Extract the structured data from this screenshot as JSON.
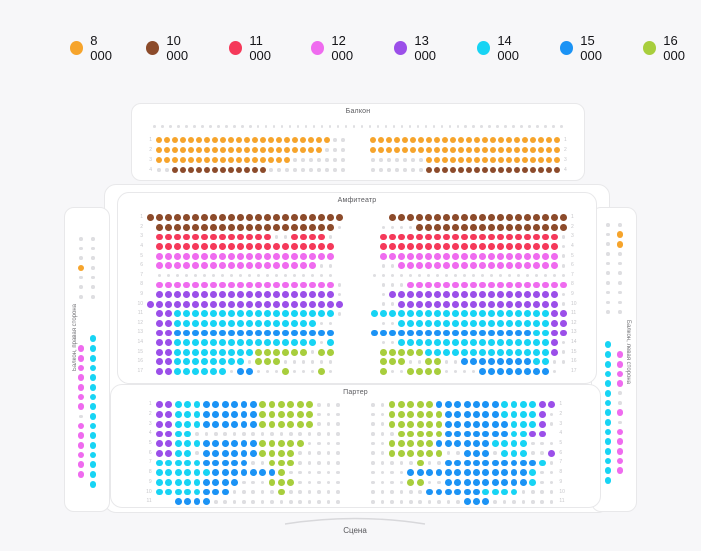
{
  "legend": {
    "items": [
      {
        "label": "8 000",
        "color": "#F6A42C"
      },
      {
        "label": "10 000",
        "color": "#8C4B2B"
      },
      {
        "label": "11 000",
        "color": "#F5395A"
      },
      {
        "label": "12 000",
        "color": "#EF6BEF"
      },
      {
        "label": "13 000",
        "color": "#9B4FE9"
      },
      {
        "label": "14 000",
        "color": "#17D4F4"
      },
      {
        "label": "15 000",
        "color": "#1B93F5"
      },
      {
        "label": "16 000",
        "color": "#A8CE3D"
      }
    ]
  },
  "palette": {
    "o": "#F6A42C",
    "b": "#8C4B2B",
    "r": "#F5395A",
    "m": "#EF6BEF",
    "p": "#9B4FE9",
    "c": "#17D4F4",
    "l": "#1B93F5",
    "g": "#A8CE3D",
    "na": "#DEDEE1"
  },
  "sections": {
    "balcony": {
      "title": "Балкон",
      "mini_count": 52,
      "rows": [
        {
          "l": "oooooooooooooooooooooo..",
          "r": "oooooooooooooooooooooooo"
        },
        {
          "l": "ooooooooooooooooooooo...",
          "r": "oooooooooooooooooooooooo"
        },
        {
          "l": "ooooooooooooooooo.......",
          "r": ".......ooooooooooooooooo"
        },
        {
          "l": "..bbbbbbbbbbbb..........",
          "r": ".......bbbbbbbbbbbbbbbbb"
        }
      ]
    },
    "amphitheater": {
      "title": "Амфитеатр",
      "rows": [
        {
          "l": "bbbbbbbbbbbbbbbbbbbbbb",
          "r": "__bbbbbbbbbbbbbbbbbbbb"
        },
        {
          "l": "_bbbbbbbbbbbbbbbbbbbb.",
          "r": "_....bbbbbbbbbbbbbbbbb"
        },
        {
          "l": "_rrrrrrrrrrrrr..rrrr._",
          "r": "_rrrrrrrrrrrrrrrrrrrr."
        },
        {
          "l": "_rrrrrrrrrrrrrrrrrrrr_",
          "r": "_rrrrrrrrrrrrrrrrrrrr."
        },
        {
          "l": "_mmmmmmmmmmmmmmmmmmmm_",
          "r": "_mmmmmmmmmmmmmmmmmmmm."
        },
        {
          "l": "_mmmmmmmmmmmmmmmmmm.._",
          "r": "_..mmmmmmmmmmmmmmmmmm."
        },
        {
          "l": "_...................._",
          "r": "......................"
        },
        {
          "l": "_mmmmmmmmmmmmmmmmmmmm.",
          "r": "_...mmmmmmmmmmmmmmmmmm"
        },
        {
          "l": "_pppppppppppppppppppp.",
          "r": "_.ppppppppppppppppppp."
        },
        {
          "l": "pppppppppppppppppppppp",
          "r": "_..pppppppppppppppppp."
        },
        {
          "l": "_ppcccccccccccccccccc.",
          "r": "ccccccccccccccccccccpp"
        },
        {
          "l": "_ppcccccccccccccccc.._",
          "r": "_..cccccccccccccccccpp"
        },
        {
          "l": "_ppllllllllllllllllll_",
          "r": "llllllllllllllllllccpp"
        },
        {
          "l": "_ppcccccccccccccccc.c_",
          "r": "_..cccccccccccccccccp."
        },
        {
          "l": "_ppcccccccccgggggg.gg_",
          "r": "_gggggccccccccccccccp."
        },
        {
          "l": "_ppcccccccc.ggg......_",
          "r": "_ggg..gg..llllllllcc.."
        },
        {
          "l": "_ppcccccc.ll...g...g._",
          "r": "_g..gggg....llllllll._"
        }
      ]
    },
    "parterre": {
      "title": "Партер",
      "rows": [
        {
          "l": "ppcccllllllgggggg...",
          "r": "..ggggglllllllccccpp"
        },
        {
          "l": "ppcccllllllgggggg...",
          "r": "..ggggggllllllccccp."
        },
        {
          "l": "ppcccllllllgggggg...",
          "r": "..gggggglllllllcccp."
        },
        {
          "l": "ppcc................",
          "r": "...ggggglllllllccpp_"
        },
        {
          "l": "ppcccllllllggggg....",
          "r": "..gggggllllllcccc..."
        },
        {
          "l": "ppcc.llllllgggg.....",
          "r": "..gggggg..lll.ccc..p"
        },
        {
          "l": "ccccclllll..ggg.....",
          "r": ".....g..llllllllllc."
        },
        {
          "l": "cccccclllllllg......",
          "r": "....lllllllllllllc.."
        },
        {
          "l": "cccccllll...ggg.....",
          "r": "....gg..lllllllllc.."
        },
        {
          "l": "ccccclll.....g......",
          "r": "......llllllcccc...."
        },
        {
          "l": "__llll..............",
          "r": "..........lll......."
        }
      ]
    },
    "balcony_right_side": {
      "title": "Балкон, правая сторона",
      "top_rows": [
        "..",
        "..",
        "..",
        "o.",
        "..",
        "..",
        ".."
      ],
      "rows": [
        "_c",
        "mc",
        "mc",
        "mc",
        "mc",
        "mc",
        "mc",
        "mc",
        ".c",
        "mc",
        "mc",
        "mc",
        "mc",
        "mc",
        "mc",
        "_c"
      ]
    },
    "balcony_left_side": {
      "title": "Балкон, левая сторона",
      "top_rows": [
        "..",
        ".o",
        ".o",
        "..",
        "..",
        "..",
        "..",
        "..",
        "..",
        ".."
      ],
      "rows": [
        "c_",
        "cm",
        "cm",
        "cm",
        "cm",
        "c.",
        "c.",
        "cm",
        "c.",
        "cm",
        "cm",
        "cm",
        "cm",
        "cm",
        "c_"
      ]
    },
    "stage": {
      "label": "Сцена"
    }
  }
}
